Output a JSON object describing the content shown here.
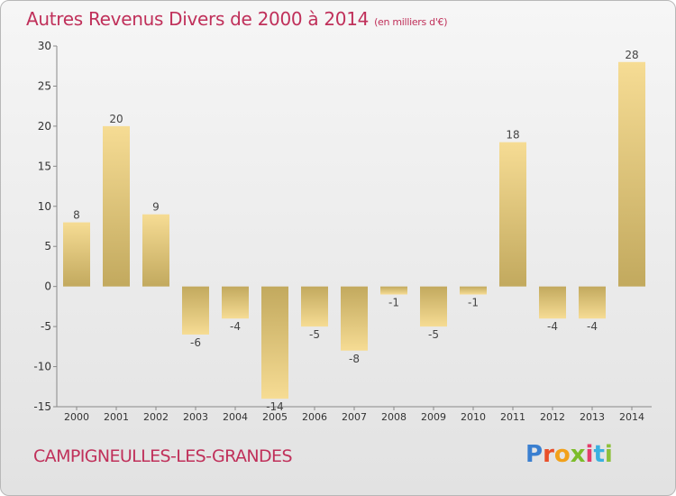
{
  "header": {
    "title": "Autres Revenus Divers de 2000 à 2014",
    "unit": "(en milliers d'€)"
  },
  "footer": {
    "town": "CAMPIGNEULLES-LES-GRANDES",
    "brand": "Proxiti",
    "brand_colors": [
      "#3a7fd0",
      "#e9502a",
      "#f2a11a",
      "#7cbc2a",
      "#e43c6a",
      "#3ab0e0",
      "#8dc03a"
    ]
  },
  "colors": {
    "accent": "#c0305a",
    "bar_light": "#f6dc94",
    "bar_dark": "#c2a95e"
  },
  "chart_data": {
    "type": "bar",
    "title": "Autres Revenus Divers de 2000 à 2014",
    "subtitle": "(en milliers d'€)",
    "xlabel": "",
    "ylabel": "",
    "categories": [
      "2000",
      "2001",
      "2002",
      "2003",
      "2004",
      "2005",
      "2006",
      "2007",
      "2008",
      "2009",
      "2010",
      "2011",
      "2012",
      "2013",
      "2014"
    ],
    "values": [
      8,
      20,
      9,
      -6,
      -4,
      -14,
      -5,
      -8,
      -1,
      -5,
      -1,
      18,
      -4,
      -4,
      28
    ],
    "ylim": [
      -15,
      30
    ],
    "yticks": [
      -15,
      -10,
      -5,
      0,
      5,
      10,
      15,
      20,
      25,
      30
    ],
    "grid": false,
    "legend": "none"
  }
}
